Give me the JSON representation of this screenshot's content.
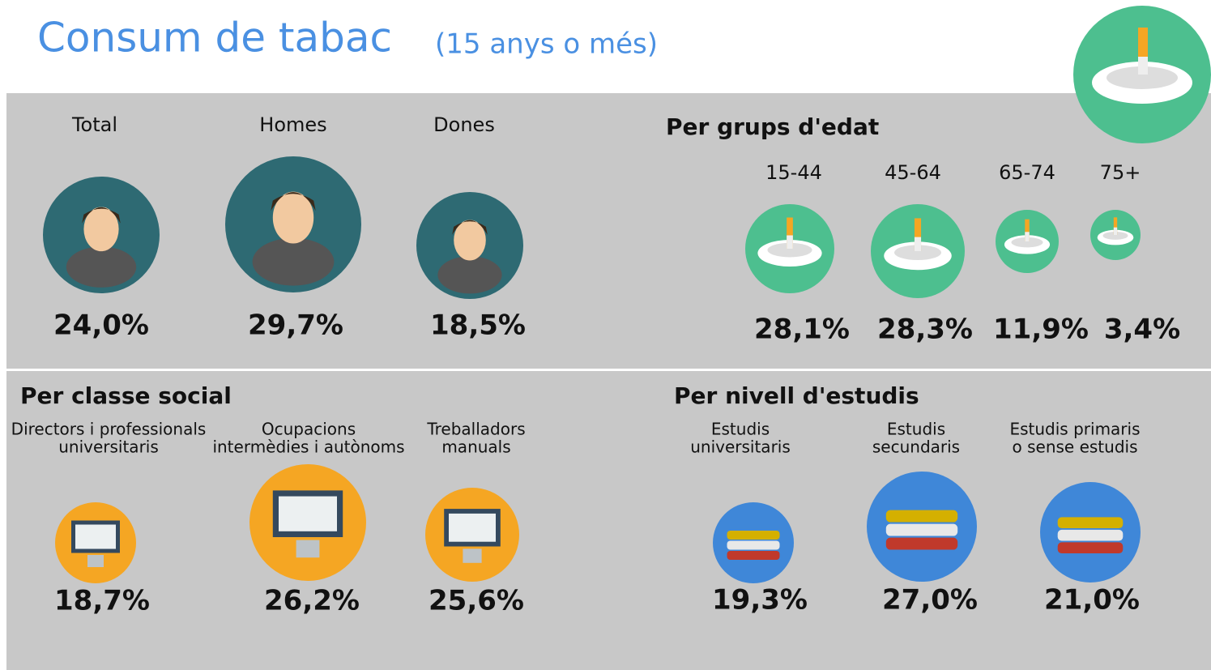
{
  "header": {
    "title": "Consum de tabac",
    "subtitle": "(15 anys o més)"
  },
  "overall": {
    "items": [
      {
        "label": "Total",
        "value": "24,0%"
      },
      {
        "label": "Homes",
        "value": "29,7%"
      },
      {
        "label": "Dones",
        "value": "18,5%"
      }
    ]
  },
  "age": {
    "title": "Per grups d'edat",
    "items": [
      {
        "label": "15-44",
        "value": "28,1%"
      },
      {
        "label": "45-64",
        "value": "28,3%"
      },
      {
        "label": "65-74",
        "value": "11,9%"
      },
      {
        "label": "75+",
        "value": "3,4%"
      }
    ]
  },
  "social_class": {
    "title": "Per classe social",
    "items": [
      {
        "label": [
          "Directors i professionals",
          "universitaris"
        ],
        "value": "18,7%"
      },
      {
        "label": [
          "Ocupacions",
          "intermèdies i autònoms"
        ],
        "value": "26,2%"
      },
      {
        "label": [
          "Treballadors",
          "manuals"
        ],
        "value": "25,6%"
      }
    ]
  },
  "education": {
    "title": "Per nivell d'estudis",
    "items": [
      {
        "label": [
          "Estudis",
          "universitaris"
        ],
        "value": "19,3%"
      },
      {
        "label": [
          "Estudis",
          "secundaris"
        ],
        "value": "27,0%"
      },
      {
        "label": [
          "Estudis primaris",
          "o sense estudis"
        ],
        "value": "21,0%"
      }
    ]
  }
}
